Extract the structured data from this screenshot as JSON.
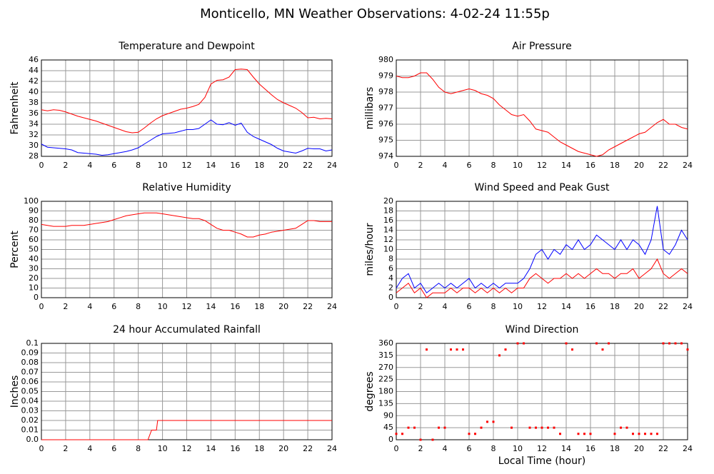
{
  "title": "Monticello, MN Weather Observations: 4-02-24 11:55p",
  "chart_data": [
    {
      "type": "line",
      "title": "Temperature and Dewpoint",
      "ylabel": "Fahrenheit",
      "x": [
        0,
        0.5,
        1,
        1.5,
        2,
        2.5,
        3,
        3.5,
        4,
        4.5,
        5,
        5.5,
        6,
        6.5,
        7,
        7.5,
        8,
        8.5,
        9,
        9.5,
        10,
        10.5,
        11,
        11.5,
        12,
        12.5,
        13,
        13.5,
        14,
        14.5,
        15,
        15.5,
        16,
        16.5,
        17,
        17.5,
        18,
        18.5,
        19,
        19.5,
        20,
        20.5,
        21,
        21.5,
        22,
        22.5,
        23,
        23.5,
        24
      ],
      "series": [
        {
          "color": "#ff0000",
          "values": [
            36.7,
            36.5,
            36.7,
            36.6,
            36.3,
            35.9,
            35.5,
            35.2,
            34.9,
            34.6,
            34.2,
            33.8,
            33.4,
            33.0,
            32.6,
            32.4,
            32.5,
            33.3,
            34.2,
            35.0,
            35.6,
            36.0,
            36.4,
            36.8,
            37.0,
            37.3,
            37.7,
            39.0,
            41.5,
            42.2,
            42.3,
            42.8,
            44.2,
            44.3,
            44.2,
            42.8,
            41.5,
            40.5,
            39.5,
            38.6,
            38.0,
            37.5,
            37.0,
            36.2,
            35.2,
            35.3,
            35.0,
            35.1,
            35.0
          ]
        },
        {
          "color": "#0000ff",
          "values": [
            30.3,
            29.7,
            29.6,
            29.5,
            29.4,
            29.2,
            28.7,
            28.6,
            28.5,
            28.4,
            28.2,
            28.3,
            28.5,
            28.7,
            28.9,
            29.2,
            29.6,
            30.3,
            31.0,
            31.7,
            32.2,
            32.3,
            32.4,
            32.7,
            33.0,
            33.0,
            33.2,
            34.0,
            34.8,
            34.0,
            33.9,
            34.3,
            33.8,
            34.2,
            32.5,
            31.7,
            31.2,
            30.7,
            30.2,
            29.5,
            29.0,
            28.8,
            28.6,
            29.0,
            29.5,
            29.4,
            29.4,
            29.0,
            29.2
          ]
        }
      ],
      "xlim": [
        0,
        24
      ],
      "xticks": [
        0,
        2,
        4,
        6,
        8,
        10,
        12,
        14,
        16,
        18,
        20,
        22,
        24
      ],
      "ylim": [
        28,
        46
      ],
      "yticks": [
        28,
        30,
        32,
        34,
        36,
        38,
        40,
        42,
        44,
        46
      ],
      "grid": true
    },
    {
      "type": "line",
      "title": "Air Pressure",
      "ylabel": "millibars",
      "x": [
        0,
        0.5,
        1,
        1.5,
        2,
        2.5,
        3,
        3.5,
        4,
        4.5,
        5,
        5.5,
        6,
        6.5,
        7,
        7.5,
        8,
        8.5,
        9,
        9.5,
        10,
        10.5,
        11,
        11.5,
        12,
        12.5,
        13,
        13.5,
        14,
        14.5,
        15,
        15.5,
        16,
        16.5,
        17,
        17.5,
        18,
        18.5,
        19,
        19.5,
        20,
        20.5,
        21,
        21.5,
        22,
        22.5,
        23,
        23.5,
        24
      ],
      "series": [
        {
          "color": "#ff0000",
          "values": [
            979.0,
            978.9,
            978.9,
            979.0,
            979.2,
            979.2,
            978.8,
            978.3,
            978.0,
            977.9,
            978.0,
            978.1,
            978.2,
            978.1,
            977.9,
            977.8,
            977.6,
            977.2,
            976.9,
            976.6,
            976.5,
            976.6,
            976.2,
            975.7,
            975.6,
            975.5,
            975.2,
            974.9,
            974.7,
            974.5,
            974.3,
            974.2,
            974.1,
            974.0,
            974.1,
            974.4,
            974.6,
            974.8,
            975.0,
            975.2,
            975.4,
            975.5,
            975.8,
            976.1,
            976.3,
            976.0,
            976.0,
            975.8,
            975.7
          ]
        }
      ],
      "xlim": [
        0,
        24
      ],
      "xticks": [
        0,
        2,
        4,
        6,
        8,
        10,
        12,
        14,
        16,
        18,
        20,
        22,
        24
      ],
      "ylim": [
        974,
        980
      ],
      "yticks": [
        974,
        975,
        976,
        977,
        978,
        979,
        980
      ],
      "grid": true
    },
    {
      "type": "line",
      "title": "Relative Humidity",
      "ylabel": "Percent",
      "x": [
        0,
        0.5,
        1,
        1.5,
        2,
        2.5,
        3,
        3.5,
        4,
        4.5,
        5,
        5.5,
        6,
        6.5,
        7,
        7.5,
        8,
        8.5,
        9,
        9.5,
        10,
        10.5,
        11,
        11.5,
        12,
        12.5,
        13,
        13.5,
        14,
        14.5,
        15,
        15.5,
        16,
        16.5,
        17,
        17.5,
        18,
        18.5,
        19,
        19.5,
        20,
        20.5,
        21,
        21.5,
        22,
        22.5,
        23,
        23.5,
        24
      ],
      "series": [
        {
          "color": "#ff0000",
          "values": [
            76,
            75,
            74,
            74,
            74,
            75,
            75,
            75,
            76,
            77,
            78,
            79,
            81,
            83,
            85,
            86,
            87,
            88,
            88,
            88,
            87,
            86,
            85,
            84,
            83,
            82,
            82,
            80,
            76,
            72,
            70,
            70,
            68,
            66,
            63,
            63,
            65,
            66,
            68,
            69,
            70,
            71,
            72,
            76,
            80,
            80,
            79,
            79,
            79
          ]
        }
      ],
      "xlim": [
        0,
        24
      ],
      "xticks": [
        0,
        2,
        4,
        6,
        8,
        10,
        12,
        14,
        16,
        18,
        20,
        22,
        24
      ],
      "ylim": [
        0,
        100
      ],
      "yticks": [
        0,
        10,
        20,
        30,
        40,
        50,
        60,
        70,
        80,
        90,
        100
      ],
      "grid": true
    },
    {
      "type": "line",
      "title": "Wind Speed and Peak Gust",
      "ylabel": "miles/hour",
      "x": [
        0,
        0.5,
        1,
        1.5,
        2,
        2.5,
        3,
        3.5,
        4,
        4.5,
        5,
        5.5,
        6,
        6.5,
        7,
        7.5,
        8,
        8.5,
        9,
        9.5,
        10,
        10.5,
        11,
        11.5,
        12,
        12.5,
        13,
        13.5,
        14,
        14.5,
        15,
        15.5,
        16,
        16.5,
        17,
        17.5,
        18,
        18.5,
        19,
        19.5,
        20,
        20.5,
        21,
        21.5,
        22,
        22.5,
        23,
        23.5,
        24
      ],
      "series": [
        {
          "color": "#0000ff",
          "values": [
            2,
            4,
            5,
            2,
            3,
            1,
            2,
            3,
            2,
            3,
            2,
            3,
            4,
            2,
            3,
            2,
            3,
            2,
            3,
            3,
            3,
            4,
            6,
            9,
            10,
            8,
            10,
            9,
            11,
            10,
            12,
            10,
            11,
            13,
            12,
            11,
            10,
            12,
            10,
            12,
            11,
            9,
            12,
            19,
            10,
            9,
            11,
            14,
            12
          ]
        },
        {
          "color": "#ff0000",
          "values": [
            1,
            2,
            3,
            1,
            2,
            0,
            1,
            1,
            1,
            2,
            1,
            2,
            2,
            1,
            2,
            1,
            2,
            1,
            2,
            1,
            2,
            2,
            4,
            5,
            4,
            3,
            4,
            4,
            5,
            4,
            5,
            4,
            5,
            6,
            5,
            5,
            4,
            5,
            5,
            6,
            4,
            5,
            6,
            8,
            5,
            4,
            5,
            6,
            5
          ]
        }
      ],
      "xlim": [
        0,
        24
      ],
      "xticks": [
        0,
        2,
        4,
        6,
        8,
        10,
        12,
        14,
        16,
        18,
        20,
        22,
        24
      ],
      "ylim": [
        0,
        20
      ],
      "yticks": [
        0,
        2,
        4,
        6,
        8,
        10,
        12,
        14,
        16,
        18,
        20
      ],
      "grid": true
    },
    {
      "type": "line",
      "title": "24 hour Accumulated Rainfall",
      "ylabel": "Inches",
      "x": [
        0,
        8.8,
        9.1,
        9.5,
        9.6,
        24
      ],
      "series": [
        {
          "color": "#ff0000",
          "values": [
            0,
            0,
            0.01,
            0.01,
            0.02,
            0.02
          ]
        }
      ],
      "xlim": [
        0,
        24
      ],
      "xticks": [
        0,
        2,
        4,
        6,
        8,
        10,
        12,
        14,
        16,
        18,
        20,
        22,
        24
      ],
      "ylim": [
        0,
        0.1
      ],
      "yticks": [
        {
          "value": 0,
          "label": "0.0"
        },
        0.01,
        0.02,
        0.03,
        0.04,
        0.05,
        0.06,
        0.07,
        0.08,
        0.09,
        0.1
      ],
      "grid": true
    },
    {
      "type": "scatter",
      "title": "Wind Direction",
      "ylabel": "degrees",
      "xlabel": "Local Time (hour)",
      "x": [
        0,
        0.5,
        1,
        1.5,
        2,
        2.5,
        3,
        3.5,
        4,
        4.5,
        5,
        5.5,
        6,
        6.5,
        7,
        7.5,
        8,
        8.5,
        9,
        9.5,
        10,
        10.5,
        11,
        11.5,
        12,
        12.5,
        13,
        13.5,
        14,
        14.5,
        15,
        15.5,
        16,
        16.5,
        17,
        17.5,
        18,
        18.5,
        19,
        19.5,
        20,
        20.5,
        21,
        21.5,
        22,
        22.5,
        23,
        23.5,
        24
      ],
      "series": [
        {
          "color": "#ff0000",
          "values": [
            22,
            22,
            45,
            45,
            0,
            337,
            0,
            45,
            45,
            337,
            337,
            337,
            22,
            22,
            45,
            67,
            67,
            315,
            337,
            45,
            360,
            360,
            45,
            45,
            45,
            45,
            45,
            22,
            360,
            337,
            22,
            22,
            22,
            360,
            337,
            360,
            22,
            45,
            45,
            22,
            22,
            22,
            22,
            22,
            360,
            360,
            360,
            360,
            337
          ]
        }
      ],
      "xlim": [
        0,
        24
      ],
      "xticks": [
        0,
        2,
        4,
        6,
        8,
        10,
        12,
        14,
        16,
        18,
        20,
        22,
        24
      ],
      "ylim": [
        0,
        360
      ],
      "yticks": [
        0,
        45,
        90,
        135,
        180,
        225,
        270,
        315,
        360
      ],
      "grid": true
    }
  ]
}
